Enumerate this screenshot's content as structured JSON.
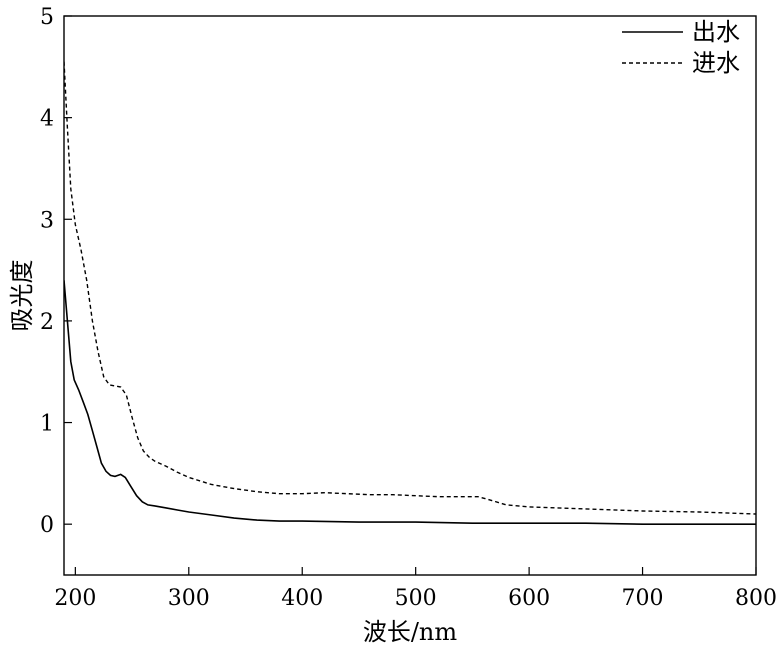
{
  "chart_data": {
    "type": "line",
    "xlabel": "波长/nm",
    "ylabel": "吸光度",
    "xlim": [
      190,
      800
    ],
    "ylim": [
      -0.5,
      5
    ],
    "x_ticks": [
      200,
      300,
      400,
      500,
      600,
      700,
      800
    ],
    "y_ticks": [
      0,
      1,
      2,
      3,
      4,
      5
    ],
    "grid": false,
    "legend_position": "top-right",
    "series": [
      {
        "name": "出水",
        "style": "solid",
        "color": "#000000",
        "points": [
          [
            190,
            2.4
          ],
          [
            193,
            2.0
          ],
          [
            196,
            1.6
          ],
          [
            199,
            1.42
          ],
          [
            203,
            1.32
          ],
          [
            207,
            1.2
          ],
          [
            211,
            1.08
          ],
          [
            215,
            0.92
          ],
          [
            219,
            0.76
          ],
          [
            223,
            0.6
          ],
          [
            227,
            0.52
          ],
          [
            231,
            0.48
          ],
          [
            235,
            0.47
          ],
          [
            240,
            0.49
          ],
          [
            244,
            0.46
          ],
          [
            249,
            0.37
          ],
          [
            254,
            0.28
          ],
          [
            259,
            0.22
          ],
          [
            264,
            0.19
          ],
          [
            270,
            0.18
          ],
          [
            280,
            0.16
          ],
          [
            290,
            0.14
          ],
          [
            300,
            0.12
          ],
          [
            320,
            0.09
          ],
          [
            340,
            0.06
          ],
          [
            360,
            0.04
          ],
          [
            380,
            0.03
          ],
          [
            400,
            0.03
          ],
          [
            450,
            0.02
          ],
          [
            500,
            0.02
          ],
          [
            550,
            0.01
          ],
          [
            600,
            0.01
          ],
          [
            650,
            0.01
          ],
          [
            700,
            0.0
          ],
          [
            750,
            0.0
          ],
          [
            800,
            0.0
          ]
        ]
      },
      {
        "name": "进水",
        "style": "dashed",
        "color": "#000000",
        "points": [
          [
            190,
            4.55
          ],
          [
            193,
            3.9
          ],
          [
            196,
            3.3
          ],
          [
            200,
            2.95
          ],
          [
            205,
            2.7
          ],
          [
            210,
            2.4
          ],
          [
            215,
            2.0
          ],
          [
            220,
            1.7
          ],
          [
            225,
            1.45
          ],
          [
            230,
            1.37
          ],
          [
            235,
            1.36
          ],
          [
            240,
            1.35
          ],
          [
            245,
            1.27
          ],
          [
            250,
            1.05
          ],
          [
            255,
            0.85
          ],
          [
            260,
            0.72
          ],
          [
            265,
            0.66
          ],
          [
            270,
            0.62
          ],
          [
            280,
            0.57
          ],
          [
            290,
            0.51
          ],
          [
            300,
            0.46
          ],
          [
            320,
            0.39
          ],
          [
            340,
            0.35
          ],
          [
            360,
            0.32
          ],
          [
            380,
            0.3
          ],
          [
            400,
            0.3
          ],
          [
            420,
            0.31
          ],
          [
            440,
            0.3
          ],
          [
            460,
            0.29
          ],
          [
            480,
            0.29
          ],
          [
            500,
            0.28
          ],
          [
            520,
            0.27
          ],
          [
            540,
            0.27
          ],
          [
            555,
            0.27
          ],
          [
            565,
            0.24
          ],
          [
            580,
            0.19
          ],
          [
            600,
            0.17
          ],
          [
            650,
            0.15
          ],
          [
            700,
            0.13
          ],
          [
            750,
            0.12
          ],
          [
            800,
            0.1
          ]
        ]
      }
    ]
  }
}
